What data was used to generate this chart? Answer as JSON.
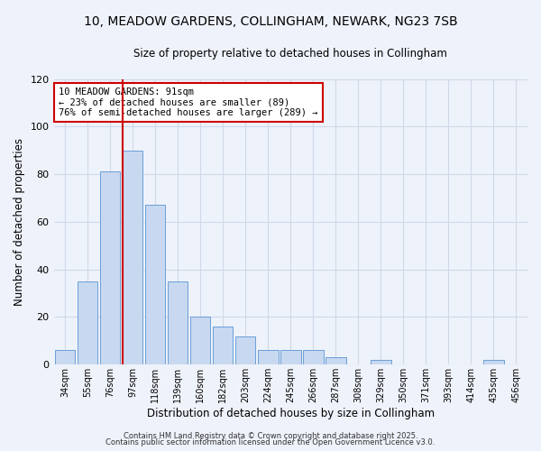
{
  "title_line1": "10, MEADOW GARDENS, COLLINGHAM, NEWARK, NG23 7SB",
  "title_line2": "Size of property relative to detached houses in Collingham",
  "xlabel": "Distribution of detached houses by size in Collingham",
  "ylabel": "Number of detached properties",
  "bar_labels": [
    "34sqm",
    "55sqm",
    "76sqm",
    "97sqm",
    "118sqm",
    "139sqm",
    "160sqm",
    "182sqm",
    "203sqm",
    "224sqm",
    "245sqm",
    "266sqm",
    "287sqm",
    "308sqm",
    "329sqm",
    "350sqm",
    "371sqm",
    "393sqm",
    "414sqm",
    "435sqm",
    "456sqm"
  ],
  "bar_values": [
    6,
    35,
    81,
    90,
    67,
    35,
    20,
    16,
    12,
    6,
    6,
    6,
    3,
    0,
    2,
    0,
    0,
    0,
    0,
    2,
    0
  ],
  "bar_color": "#c8d8f0",
  "bar_edge_color": "#6a9fd8",
  "grid_color": "#d0d8e8",
  "background_color": "#eef2fa",
  "vline_color": "#cc0000",
  "annotation_text": "10 MEADOW GARDENS: 91sqm\n← 23% of detached houses are smaller (89)\n76% of semi-detached houses are larger (289) →",
  "annotation_box_color": "#ffffff",
  "annotation_box_edge": "#cc0000",
  "ylim": [
    0,
    120
  ],
  "yticks": [
    0,
    20,
    40,
    60,
    80,
    100,
    120
  ],
  "footer_line1": "Contains HM Land Registry data © Crown copyright and database right 2025.",
  "footer_line2": "Contains public sector information licensed under the Open Government Licence v3.0."
}
